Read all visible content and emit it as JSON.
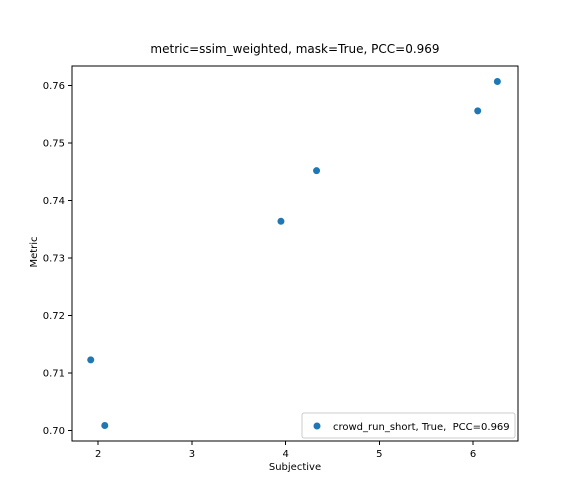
{
  "chart_data": {
    "type": "scatter",
    "title": "metric=ssim_weighted, mask=True, PCC=0.969",
    "xlabel": "Subjective",
    "ylabel": "Metric",
    "xlim": [
      1.72,
      6.48
    ],
    "ylim": [
      0.6982,
      0.7634
    ],
    "xticks": [
      2,
      3,
      4,
      5,
      6
    ],
    "yticks": [
      0.7,
      0.71,
      0.72,
      0.73,
      0.74,
      0.75,
      0.76
    ],
    "ytick_labels": [
      "0.70",
      "0.71",
      "0.72",
      "0.73",
      "0.74",
      "0.75",
      "0.76"
    ],
    "grid": false,
    "legend_position": "bottom-right",
    "series": [
      {
        "name": "crowd_run_short, True,  PCC=0.969",
        "color": "#1f77b4",
        "x": [
          1.92,
          2.07,
          3.95,
          4.33,
          6.05,
          6.26
        ],
        "y": [
          0.7123,
          0.7009,
          0.7364,
          0.7452,
          0.7556,
          0.7607
        ]
      }
    ]
  }
}
